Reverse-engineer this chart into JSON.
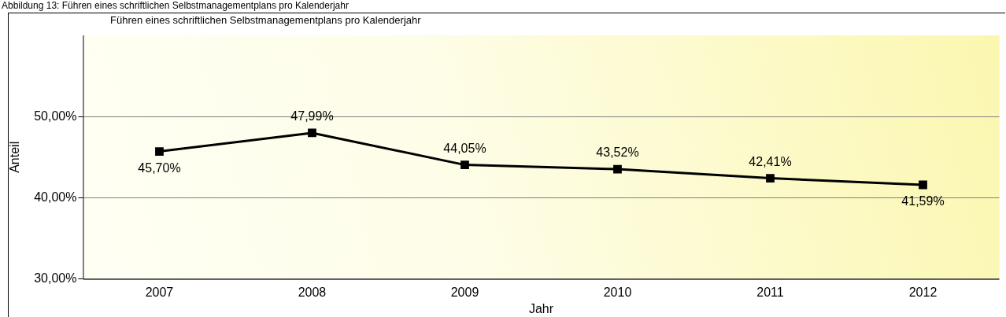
{
  "chart_data": {
    "type": "line",
    "title": "Abbildung 13: Führen eines schriftlichen Selbstmanagementplans pro Kalenderjahr",
    "subtitle": "Führen eines schriftlichen Selbstmanagementplans pro Kalenderjahr",
    "xlabel": "Jahr",
    "ylabel": "Anteil",
    "categories": [
      "2007",
      "2008",
      "2009",
      "2010",
      "2011",
      "2012"
    ],
    "series": [
      {
        "color": "#000000",
        "values": [
          45.7,
          47.99,
          44.05,
          43.52,
          42.41,
          41.59
        ],
        "value_labels": [
          "45,70%",
          "47,99%",
          "44,05%",
          "43,52%",
          "42,41%",
          "41,59%"
        ]
      }
    ],
    "ylim": [
      30,
      60
    ],
    "yticks": [
      {
        "value": 30,
        "label": "30,00%"
      },
      {
        "value": 40,
        "label": "40,00%"
      },
      {
        "value": 50,
        "label": "50,00%"
      }
    ],
    "grid": "y",
    "legend": false,
    "marker": "square",
    "line_style": "solid"
  }
}
